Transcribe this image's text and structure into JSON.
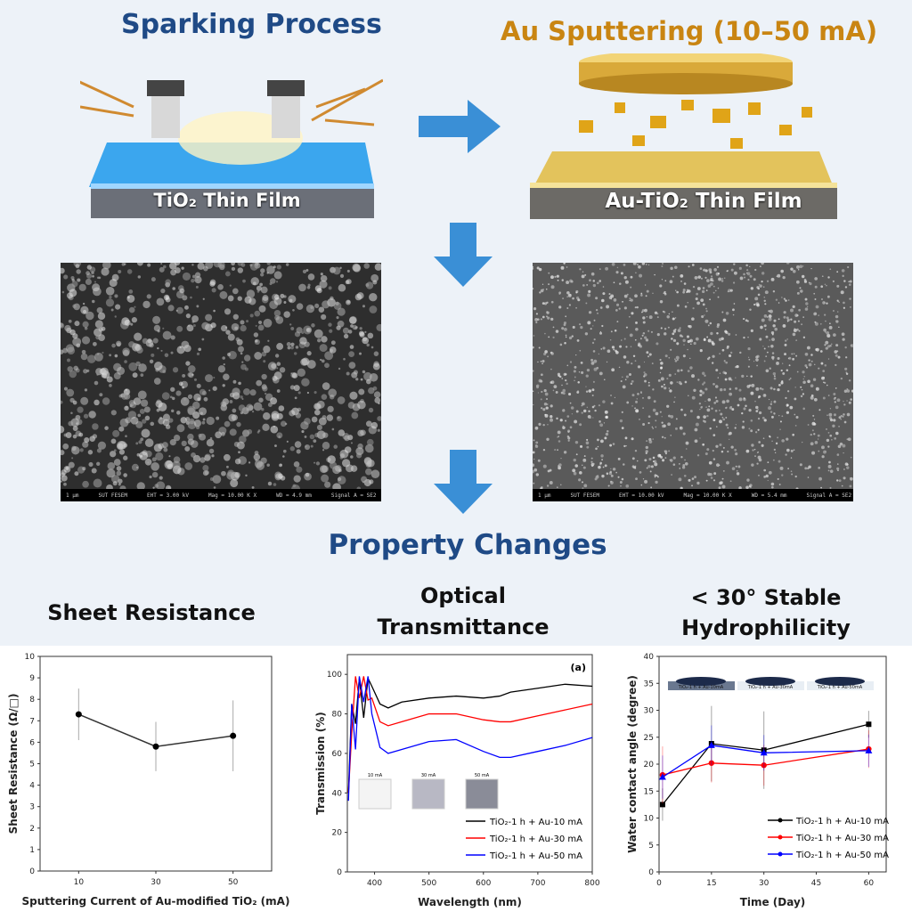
{
  "header": {
    "left_title": "Sparking Process",
    "right_title": "Au Sputtering (10–50 mA)",
    "left_film_label": "TiO₂ Thin Film",
    "right_film_label": "Au-TiO₂ Thin Film"
  },
  "sem": {
    "left": {
      "scale": "1 µm",
      "source": "SUT FESEM",
      "eht": "EHT = 3.00 kV",
      "mag": "Mag = 10.00 K X",
      "wd": "WD = 4.9 mm",
      "signal": "Signal A = SE2"
    },
    "right": {
      "scale": "1 µm",
      "source": "SUT FESEM",
      "eht": "EHT = 10.00 kV",
      "mag": "Mag = 10.00 K X",
      "wd": "WD = 5.4 mm",
      "signal": "Signal A = SE2"
    }
  },
  "section_title": "Property Changes",
  "subtitles": {
    "sheet": "Sheet Resistance",
    "optical_1": "Optical",
    "optical_2": "Transmittance",
    "hydro_1": "< 30° Stable",
    "hydro_2": "Hydrophilicity"
  },
  "colors": {
    "blue_title": "#1f4a86",
    "orange_title": "#c98512",
    "series_black": "#000000",
    "series_red": "#ff0000",
    "series_blue": "#0000ff"
  },
  "chart_data": [
    {
      "type": "line",
      "xlabel": "Sputtering Current of Au-modified TiO₂ (mA)",
      "ylabel": "Sheet Resistance (Ω/□)",
      "xticks": [
        10,
        30,
        50
      ],
      "yticks": [
        0,
        1,
        2,
        3,
        4,
        5,
        6,
        7,
        8,
        9,
        10
      ],
      "ylim": [
        0,
        10
      ],
      "x": [
        10,
        30,
        50
      ],
      "values": [
        7.3,
        5.8,
        6.3
      ],
      "errors": [
        1.2,
        1.15,
        1.65
      ]
    },
    {
      "type": "line",
      "panel_label": "(a)",
      "xlabel": "Wavelength (nm)",
      "ylabel": "Transmission (%)",
      "xlim": [
        350,
        800
      ],
      "ylim": [
        0,
        110
      ],
      "xticks": [
        400,
        500,
        600,
        700,
        800
      ],
      "yticks": [
        0,
        20,
        40,
        60,
        80,
        100
      ],
      "legend_position": "bottom-right",
      "inset_labels": [
        "10 mA",
        "30 mA",
        "50 mA"
      ],
      "x": [
        352,
        358,
        365,
        372,
        380,
        388,
        395,
        410,
        425,
        450,
        500,
        550,
        600,
        630,
        650,
        700,
        750,
        800
      ],
      "series": [
        {
          "name": "TiO₂-1 h + Au-10 mA",
          "color": "#000000",
          "values": [
            40,
            85,
            75,
            98,
            78,
            98,
            94,
            85,
            83,
            86,
            88,
            89,
            88,
            89,
            91,
            93,
            95,
            94
          ]
        },
        {
          "name": "TiO₂-1 h + Au-30 mA",
          "color": "#ff0000",
          "values": [
            40,
            70,
            99,
            88,
            99,
            87,
            88,
            76,
            74,
            76,
            80,
            80,
            77,
            76,
            76,
            79,
            82,
            85
          ]
        },
        {
          "name": "TiO₂-1 h + Au-50 mA",
          "color": "#0000ff",
          "values": [
            36,
            85,
            62,
            99,
            86,
            99,
            80,
            63,
            60,
            62,
            66,
            67,
            61,
            58,
            58,
            61,
            64,
            68
          ]
        }
      ]
    },
    {
      "type": "line",
      "xlabel": "Time (Day)",
      "ylabel": "Water contact angle (degree)",
      "xlim": [
        0,
        65
      ],
      "ylim": [
        0,
        40
      ],
      "xticks": [
        0,
        15,
        30,
        45,
        60
      ],
      "yticks": [
        0,
        5,
        10,
        15,
        20,
        25,
        30,
        35,
        40
      ],
      "legend_position": "bottom-right",
      "inset_labels": [
        "TiO₂-1 h + Au-10mA",
        "TiO₂-1 h + Au-30mA",
        "TiO₂-1 h + Au-50mA"
      ],
      "x": [
        1,
        15,
        30,
        60
      ],
      "series": [
        {
          "name": "TiO₂-1 h + Au-10 mA",
          "color": "#000000",
          "marker": "square",
          "values": [
            12.5,
            23.8,
            22.6,
            27.4
          ],
          "errors": [
            3,
            7,
            7.2,
            2.5
          ]
        },
        {
          "name": "TiO₂-1 h + Au-30 mA",
          "color": "#ff0000",
          "marker": "circle",
          "values": [
            18,
            20.2,
            19.8,
            22.8
          ],
          "errors": [
            5.3,
            3.6,
            3.8,
            3.5
          ]
        },
        {
          "name": "TiO₂-1 h + Au-50 mA",
          "color": "#0000ff",
          "marker": "triangle",
          "values": [
            17.6,
            23.5,
            22.1,
            22.5
          ],
          "errors": [
            4,
            3.7,
            3.3,
            3
          ]
        }
      ]
    }
  ]
}
